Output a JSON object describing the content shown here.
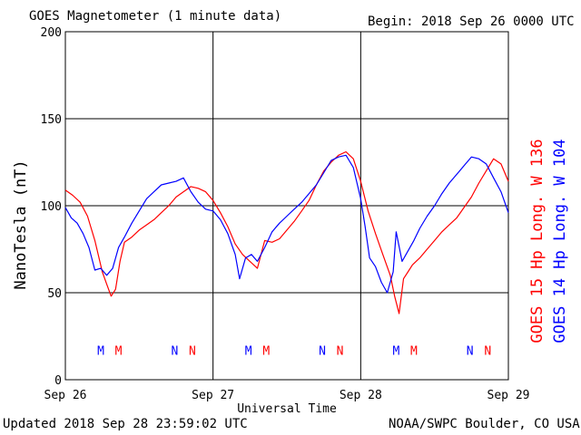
{
  "header": {
    "title": "GOES Magnetometer (1 minute data)",
    "begin": "Begin:  2018 Sep 26 0000 UTC"
  },
  "footer": {
    "updated": "Updated 2018 Sep 28 23:59:02 UTC",
    "source": "NOAA/SWPC Boulder, CO USA"
  },
  "colors": {
    "goes15": "#ff0000",
    "goes14": "#0000ff",
    "grid": "#000000",
    "background": "#ffffff"
  },
  "chart_data": {
    "type": "line",
    "title": "GOES Magnetometer (1 minute data)",
    "xlabel": "Universal Time",
    "ylabel": "NanoTesla (nT)",
    "xlim": [
      0,
      3
    ],
    "ylim": [
      0,
      200
    ],
    "yticks": [
      0,
      50,
      100,
      150,
      200
    ],
    "xtick_labels": [
      "Sep 26",
      "Sep 27",
      "Sep 28",
      "Sep 29"
    ],
    "grid": true,
    "series": [
      {
        "name": "GOES 15 Hp  Long. W 136",
        "color": "#ff0000",
        "points": [
          [
            0.0,
            109
          ],
          [
            0.05,
            106
          ],
          [
            0.1,
            102
          ],
          [
            0.15,
            94
          ],
          [
            0.2,
            80
          ],
          [
            0.25,
            62
          ],
          [
            0.28,
            55
          ],
          [
            0.31,
            48
          ],
          [
            0.34,
            52
          ],
          [
            0.37,
            68
          ],
          [
            0.4,
            79
          ],
          [
            0.45,
            82
          ],
          [
            0.5,
            86
          ],
          [
            0.55,
            89
          ],
          [
            0.6,
            92
          ],
          [
            0.65,
            96
          ],
          [
            0.7,
            100
          ],
          [
            0.75,
            105
          ],
          [
            0.8,
            108
          ],
          [
            0.85,
            111
          ],
          [
            0.9,
            110
          ],
          [
            0.95,
            108
          ],
          [
            1.0,
            103
          ],
          [
            1.05,
            96
          ],
          [
            1.1,
            88
          ],
          [
            1.15,
            78
          ],
          [
            1.2,
            72
          ],
          [
            1.25,
            68
          ],
          [
            1.3,
            64
          ],
          [
            1.35,
            80
          ],
          [
            1.4,
            79
          ],
          [
            1.45,
            81
          ],
          [
            1.5,
            86
          ],
          [
            1.55,
            91
          ],
          [
            1.6,
            97
          ],
          [
            1.65,
            103
          ],
          [
            1.7,
            112
          ],
          [
            1.75,
            120
          ],
          [
            1.8,
            125
          ],
          [
            1.85,
            129
          ],
          [
            1.9,
            131
          ],
          [
            1.95,
            127
          ],
          [
            2.0,
            114
          ],
          [
            2.05,
            97
          ],
          [
            2.1,
            84
          ],
          [
            2.15,
            72
          ],
          [
            2.2,
            60
          ],
          [
            2.23,
            48
          ],
          [
            2.26,
            38
          ],
          [
            2.29,
            58
          ],
          [
            2.32,
            62
          ],
          [
            2.35,
            66
          ],
          [
            2.4,
            70
          ],
          [
            2.45,
            75
          ],
          [
            2.5,
            80
          ],
          [
            2.55,
            85
          ],
          [
            2.6,
            89
          ],
          [
            2.65,
            93
          ],
          [
            2.7,
            99
          ],
          [
            2.75,
            105
          ],
          [
            2.8,
            113
          ],
          [
            2.85,
            120
          ],
          [
            2.9,
            127
          ],
          [
            2.95,
            124
          ],
          [
            3.0,
            114
          ]
        ]
      },
      {
        "name": "GOES 14 Hp  Long. W 104",
        "color": "#0000ff",
        "points": [
          [
            0.0,
            99
          ],
          [
            0.04,
            93
          ],
          [
            0.08,
            90
          ],
          [
            0.12,
            84
          ],
          [
            0.16,
            76
          ],
          [
            0.2,
            63
          ],
          [
            0.24,
            64
          ],
          [
            0.28,
            60
          ],
          [
            0.32,
            64
          ],
          [
            0.36,
            76
          ],
          [
            0.4,
            82
          ],
          [
            0.45,
            90
          ],
          [
            0.5,
            97
          ],
          [
            0.55,
            104
          ],
          [
            0.6,
            108
          ],
          [
            0.65,
            112
          ],
          [
            0.7,
            113
          ],
          [
            0.75,
            114
          ],
          [
            0.8,
            116
          ],
          [
            0.85,
            108
          ],
          [
            0.9,
            102
          ],
          [
            0.95,
            98
          ],
          [
            1.0,
            97
          ],
          [
            1.05,
            92
          ],
          [
            1.1,
            84
          ],
          [
            1.15,
            72
          ],
          [
            1.18,
            58
          ],
          [
            1.22,
            70
          ],
          [
            1.26,
            72
          ],
          [
            1.3,
            68
          ],
          [
            1.35,
            76
          ],
          [
            1.4,
            85
          ],
          [
            1.45,
            90
          ],
          [
            1.5,
            94
          ],
          [
            1.55,
            98
          ],
          [
            1.6,
            102
          ],
          [
            1.65,
            107
          ],
          [
            1.7,
            112
          ],
          [
            1.75,
            119
          ],
          [
            1.8,
            126
          ],
          [
            1.85,
            128
          ],
          [
            1.9,
            129
          ],
          [
            1.95,
            122
          ],
          [
            2.0,
            104
          ],
          [
            2.03,
            88
          ],
          [
            2.06,
            70
          ],
          [
            2.1,
            65
          ],
          [
            2.14,
            56
          ],
          [
            2.18,
            50
          ],
          [
            2.22,
            62
          ],
          [
            2.24,
            85
          ],
          [
            2.28,
            68
          ],
          [
            2.32,
            74
          ],
          [
            2.36,
            80
          ],
          [
            2.4,
            87
          ],
          [
            2.45,
            94
          ],
          [
            2.5,
            100
          ],
          [
            2.55,
            107
          ],
          [
            2.6,
            113
          ],
          [
            2.65,
            118
          ],
          [
            2.7,
            123
          ],
          [
            2.75,
            128
          ],
          [
            2.8,
            127
          ],
          [
            2.85,
            124
          ],
          [
            2.9,
            116
          ],
          [
            2.95,
            108
          ],
          [
            3.0,
            96
          ]
        ]
      }
    ],
    "markers": [
      {
        "label": "M",
        "x": 0.24,
        "color": "#0000ff"
      },
      {
        "label": "M",
        "x": 0.36,
        "color": "#ff0000"
      },
      {
        "label": "N",
        "x": 0.74,
        "color": "#0000ff"
      },
      {
        "label": "N",
        "x": 0.86,
        "color": "#ff0000"
      },
      {
        "label": "M",
        "x": 1.24,
        "color": "#0000ff"
      },
      {
        "label": "M",
        "x": 1.36,
        "color": "#ff0000"
      },
      {
        "label": "N",
        "x": 1.74,
        "color": "#0000ff"
      },
      {
        "label": "N",
        "x": 1.86,
        "color": "#ff0000"
      },
      {
        "label": "M",
        "x": 2.24,
        "color": "#0000ff"
      },
      {
        "label": "M",
        "x": 2.36,
        "color": "#ff0000"
      },
      {
        "label": "N",
        "x": 2.74,
        "color": "#0000ff"
      },
      {
        "label": "N",
        "x": 2.86,
        "color": "#ff0000"
      }
    ],
    "marker_y": 17
  }
}
